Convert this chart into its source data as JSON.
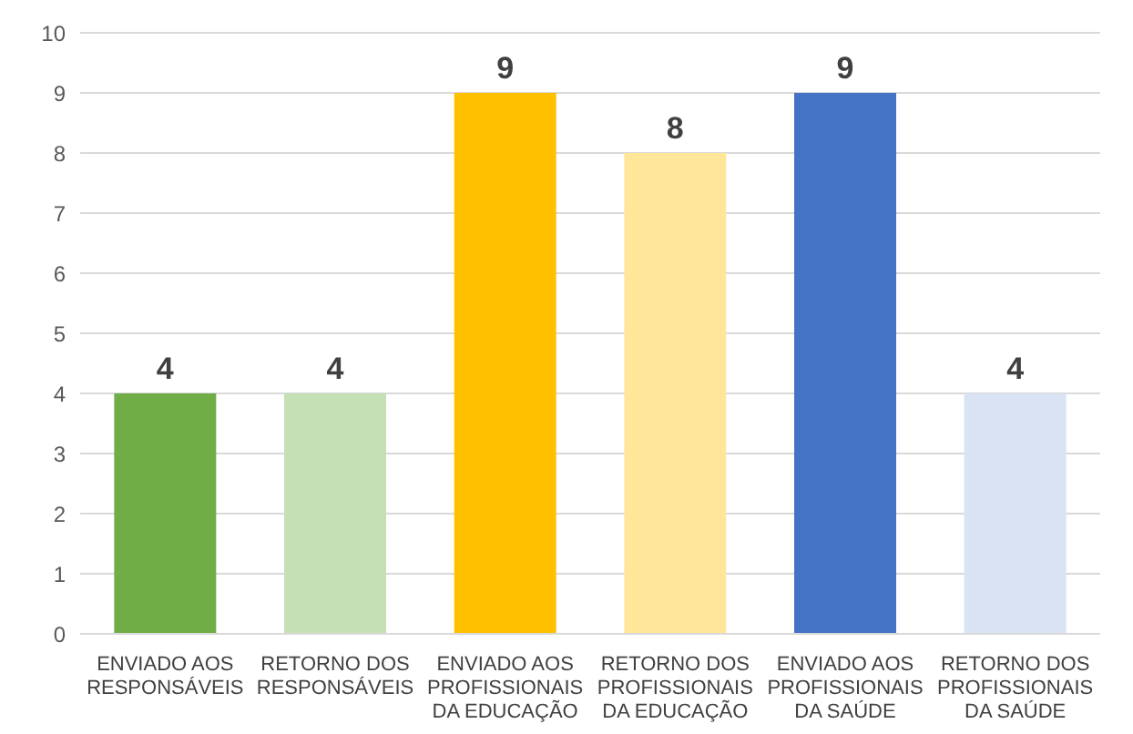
{
  "chart_data": {
    "type": "bar",
    "categories": [
      "ENVIADO AOS RESPONSÁVEIS",
      "RETORNO DOS RESPONSÁVEIS",
      "ENVIADO AOS PROFISSIONAIS DA EDUCAÇÃO",
      "RETORNO DOS PROFISSIONAIS DA EDUCAÇÃO",
      "ENVIADO AOS PROFISSIONAIS DA SAÚDE",
      "RETORNO DOS PROFISSIONAIS DA SAÚDE"
    ],
    "values": [
      4,
      4,
      9,
      8,
      9,
      4
    ],
    "colors": [
      "#70ad47",
      "#c5e0b4",
      "#ffc000",
      "#ffe699",
      "#4472c4",
      "#dae3f3"
    ],
    "ylim": [
      0,
      10
    ],
    "yticks": [
      0,
      1,
      2,
      3,
      4,
      5,
      6,
      7,
      8,
      9,
      10
    ],
    "grid": "y",
    "data_labels": true
  }
}
